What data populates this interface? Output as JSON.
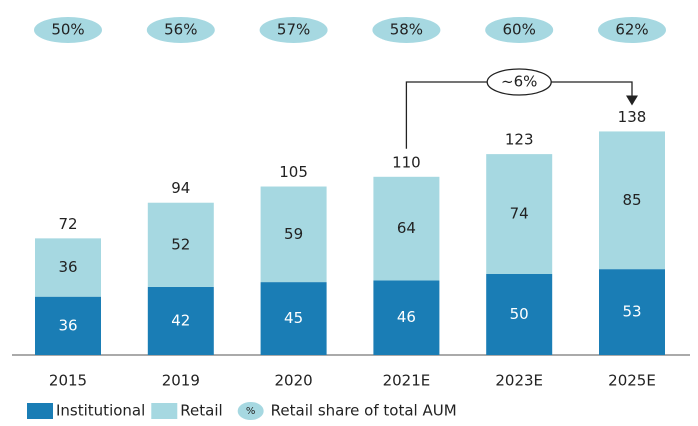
{
  "chart_data": {
    "type": "bar",
    "stacked": true,
    "categories": [
      "2015",
      "2019",
      "2020",
      "2021E",
      "2023E",
      "2025E"
    ],
    "series": [
      {
        "name": "Institutional",
        "color": "#1a7db5",
        "values": [
          36,
          42,
          45,
          46,
          50,
          53
        ]
      },
      {
        "name": "Retail",
        "color": "#a6d8e1",
        "values": [
          36,
          52,
          59,
          64,
          74,
          85
        ]
      }
    ],
    "totals": [
      72,
      94,
      105,
      110,
      123,
      138
    ],
    "share": {
      "name": "Retail share of total AUM",
      "icon": "%",
      "color": "#a6d8e1",
      "values": [
        50,
        56,
        57,
        58,
        60,
        62
      ],
      "value_labels": [
        "50%",
        "56%",
        "57%",
        "58%",
        "60%",
        "62%"
      ]
    },
    "cagr_label": "~6%"
  }
}
